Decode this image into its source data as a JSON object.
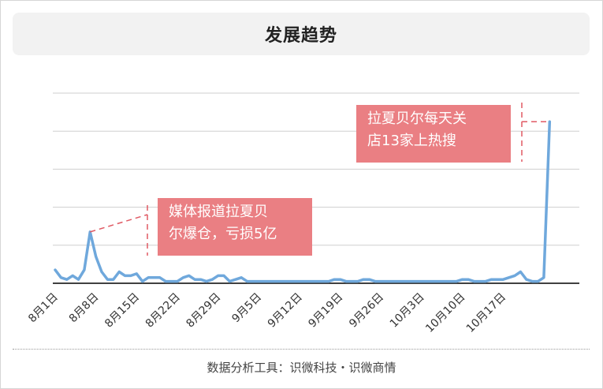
{
  "title": "发展趋势",
  "footer": "数据分析工具：识微科技・识微商情",
  "annotations": [
    {
      "line1": "媒体报道拉夏贝",
      "line2": "尔爆仓，亏损5亿"
    },
    {
      "line1": "拉夏贝尔每天关",
      "line2": "店13家上热搜"
    }
  ],
  "chart_data": {
    "type": "line",
    "title": "发展趋势",
    "xlabel": "",
    "ylabel": "",
    "grid": true,
    "legend": "none",
    "line_color": "#6fa8dc",
    "x_tick_labels": [
      "8月1日",
      "8月8日",
      "8月15日",
      "8月22日",
      "8月29日",
      "9月5日",
      "9月12日",
      "9月19日",
      "9月26日",
      "10月3日",
      "10月10日",
      "10月17日"
    ],
    "ylim": [
      0,
      100
    ],
    "y_axis_labels_shown": false,
    "series": [
      {
        "values": [
          7,
          3,
          2,
          4,
          2,
          7,
          27,
          14,
          6,
          2,
          2,
          6,
          4,
          4,
          5,
          1,
          3,
          3,
          3,
          1,
          1,
          1,
          3,
          4,
          2,
          2,
          1,
          2,
          4,
          4,
          1,
          2,
          3,
          1,
          1,
          1,
          1,
          1,
          1,
          1,
          1,
          1,
          1,
          1,
          1,
          1,
          1,
          1,
          2,
          2,
          1,
          1,
          1,
          2,
          2,
          1,
          1,
          1,
          1,
          1,
          1,
          1,
          1,
          1,
          1,
          1,
          1,
          1,
          1,
          1,
          2,
          2,
          1,
          1,
          1,
          2,
          2,
          2,
          3,
          4,
          6,
          2,
          1,
          1,
          3,
          85
        ]
      }
    ]
  }
}
